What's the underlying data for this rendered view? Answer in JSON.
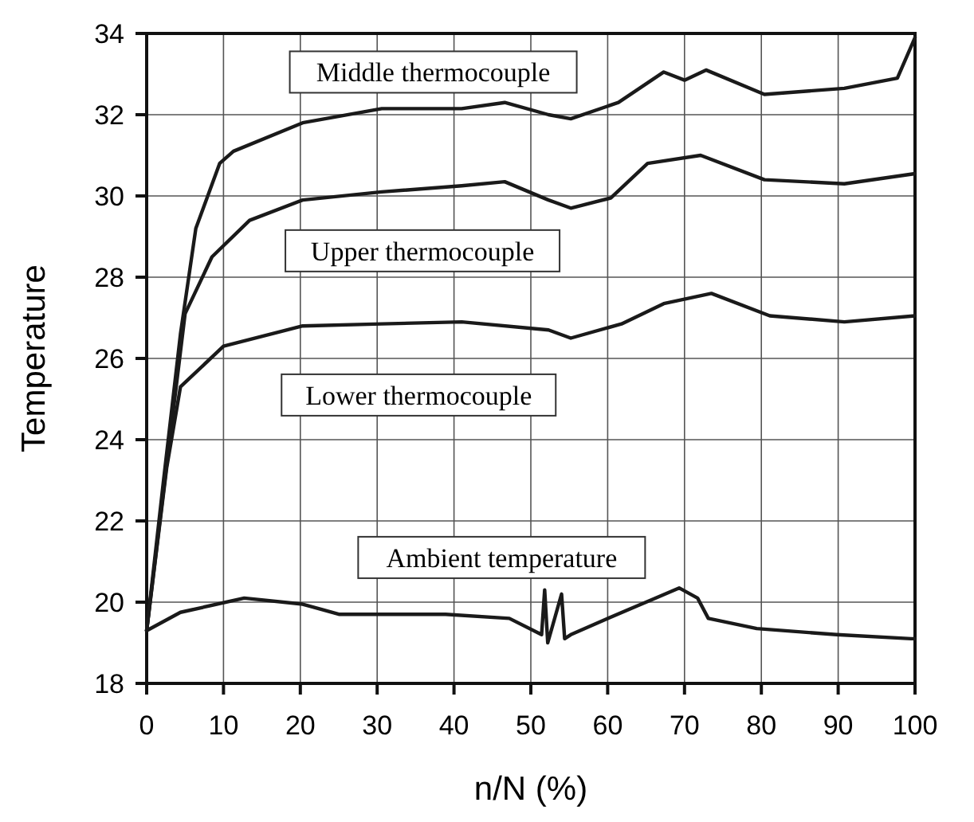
{
  "chart_data": {
    "type": "line",
    "xlabel": "n/N  (%)",
    "ylabel": "Temperature",
    "xlim": [
      0,
      100
    ],
    "ylim": [
      18,
      34
    ],
    "xticks": [
      0,
      10,
      20,
      30,
      40,
      50,
      60,
      70,
      80,
      90,
      100
    ],
    "yticks": [
      18,
      20,
      22,
      24,
      26,
      28,
      30,
      32,
      34
    ],
    "grid": true,
    "marker": "none",
    "line_style": "solid",
    "series": [
      {
        "name": "Middle thermocouple",
        "color": "#1a1a1a",
        "x": [
          0,
          2.2,
          4.4,
          6.4,
          9.5,
          11.3,
          20.3,
          30.6,
          41,
          46.6,
          52.3,
          55.2,
          61.4,
          67.3,
          70,
          72.8,
          80.4,
          90.8,
          97.7,
          100
        ],
        "values": [
          19.3,
          23.0,
          26.6,
          29.2,
          30.8,
          31.1,
          31.8,
          32.15,
          32.15,
          32.3,
          32.0,
          31.9,
          32.3,
          33.05,
          32.85,
          33.1,
          32.5,
          32.65,
          32.9,
          33.9
        ]
      },
      {
        "name": "Upper thermocouple",
        "color": "#1a1a1a",
        "x": [
          0,
          3,
          5,
          8.5,
          13.4,
          20.3,
          30.6,
          41,
          46.6,
          52.3,
          55.2,
          60.4,
          65.2,
          72.1,
          80.4,
          90.8,
          100
        ],
        "values": [
          19.3,
          24.0,
          27.1,
          28.5,
          29.4,
          29.9,
          30.1,
          30.25,
          30.35,
          29.9,
          29.7,
          29.95,
          30.8,
          31.0,
          30.4,
          30.3,
          30.55
        ]
      },
      {
        "name": "Lower thermocouple",
        "color": "#1a1a1a",
        "x": [
          0,
          2.6,
          4.4,
          10,
          18.2,
          20.3,
          30.6,
          41,
          52.3,
          55.2,
          61.8,
          67.3,
          73.5,
          81.1,
          90.8,
          100
        ],
        "values": [
          19.3,
          23.3,
          25.3,
          26.3,
          26.7,
          26.8,
          26.85,
          26.9,
          26.7,
          26.5,
          26.85,
          27.35,
          27.6,
          27.05,
          26.9,
          27.05
        ]
      },
      {
        "name": "Ambient temperature",
        "color": "#1a1a1a",
        "x": [
          0,
          4.4,
          12.7,
          20.3,
          25.1,
          38.9,
          47.2,
          51.4,
          51.8,
          52.2,
          54,
          54.4,
          55.2,
          60,
          65.6,
          69.3,
          71.7,
          73.1,
          79.4,
          89.8,
          99.5,
          100
        ],
        "values": [
          19.3,
          19.75,
          20.1,
          19.95,
          19.7,
          19.7,
          19.6,
          19.2,
          20.3,
          19.0,
          20.2,
          19.1,
          19.2,
          19.6,
          20.05,
          20.35,
          20.1,
          19.6,
          19.35,
          19.2,
          19.1,
          19.1
        ]
      }
    ]
  }
}
